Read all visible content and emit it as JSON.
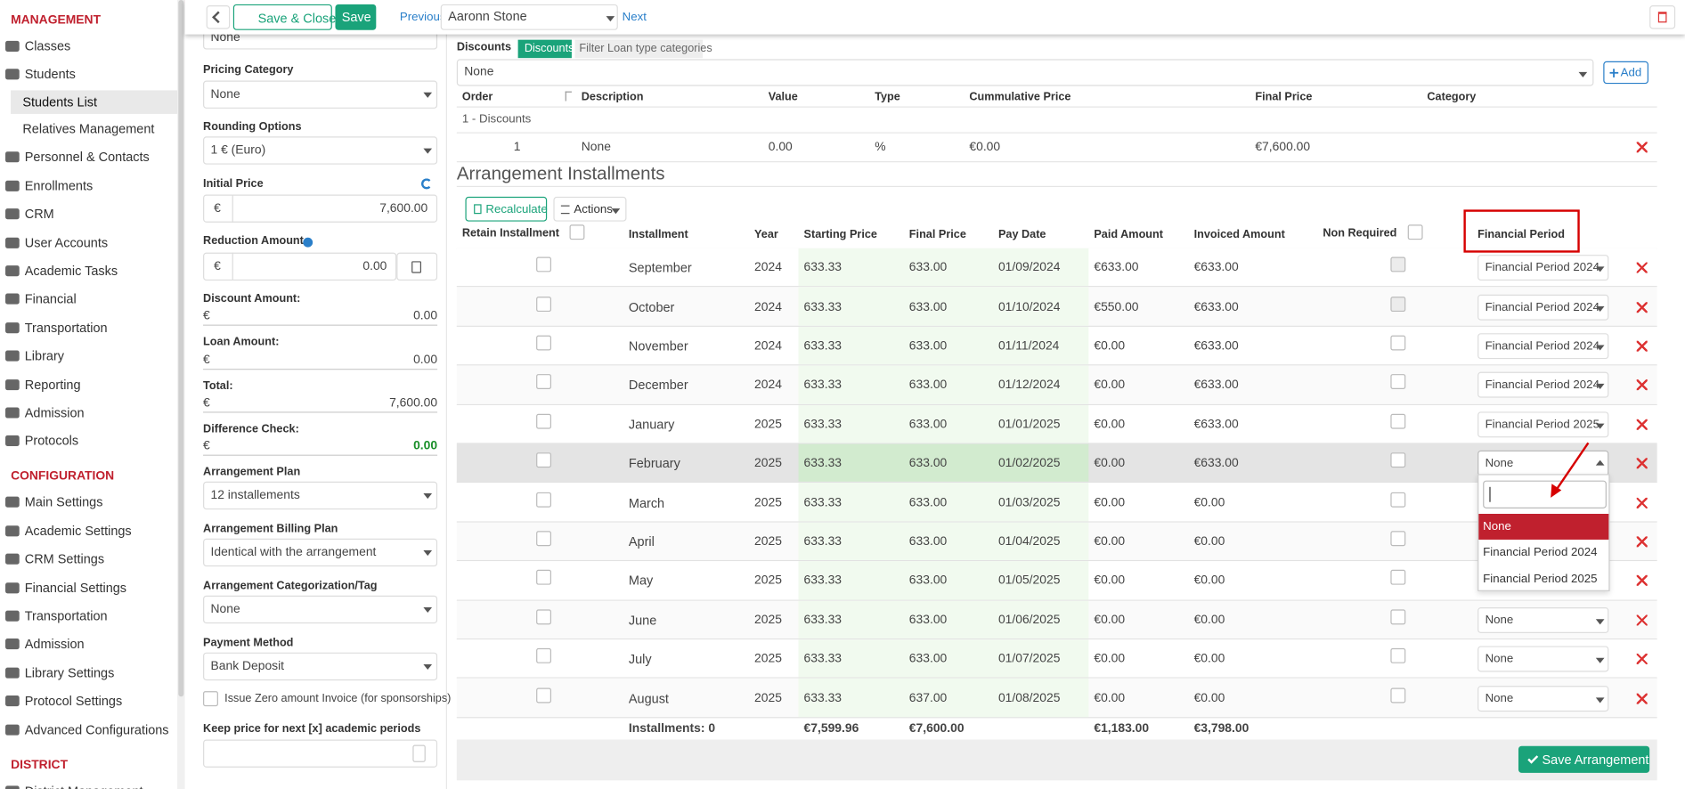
{
  "sidebar": {
    "sections": [
      {
        "title": "MANAGEMENT",
        "items": [
          {
            "label": "Classes"
          },
          {
            "label": "Students",
            "sub": [
              "Students List",
              "Relatives Management"
            ]
          },
          {
            "label": "Personnel & Contacts"
          },
          {
            "label": "Enrollments"
          },
          {
            "label": "CRM"
          },
          {
            "label": "User Accounts"
          },
          {
            "label": "Academic Tasks"
          },
          {
            "label": "Financial"
          },
          {
            "label": "Transportation"
          },
          {
            "label": "Library"
          },
          {
            "label": "Reporting"
          },
          {
            "label": "Admission"
          },
          {
            "label": "Protocols"
          }
        ]
      },
      {
        "title": "CONFIGURATION",
        "items": [
          {
            "label": "Main Settings"
          },
          {
            "label": "Academic Settings"
          },
          {
            "label": "CRM Settings"
          },
          {
            "label": "Financial Settings"
          },
          {
            "label": "Transportation"
          },
          {
            "label": "Admission"
          },
          {
            "label": "Library Settings"
          },
          {
            "label": "Protocol Settings"
          },
          {
            "label": "Advanced Configurations"
          }
        ]
      },
      {
        "title": "DISTRICT",
        "items": [
          {
            "label": "District Management"
          }
        ]
      }
    ]
  },
  "toolbar": {
    "save_close": "Save & Close",
    "save": "Save",
    "previous": "Previous",
    "student": "Aaronn Stone",
    "next": "Next"
  },
  "form": {
    "currency": "€",
    "top_select": "None",
    "fields": [
      {
        "label": "Pricing Category",
        "value": "None"
      },
      {
        "label": "Rounding Options",
        "value": "1 € (Euro)"
      },
      {
        "label": "Initial Price",
        "value": "7,600.00"
      },
      {
        "label": "Reduction Amount",
        "value": "0.00"
      },
      {
        "label": "Discount Amount:",
        "value": "0.00"
      },
      {
        "label": "Loan Amount:",
        "value": "0.00"
      },
      {
        "label": "Total:",
        "value": "7,600.00"
      },
      {
        "label": "Difference Check:",
        "value": "0.00"
      },
      {
        "label": "Arrangement Plan",
        "value": "12 installements"
      },
      {
        "label": "Arrangement Billing Plan",
        "value": "Identical with the arrangement"
      },
      {
        "label": "Arrangement Categorization/Tag",
        "value": "None"
      },
      {
        "label": "Payment Method",
        "value": "Bank Deposit"
      }
    ],
    "zero_invoice": "Issue Zero amount Invoice (for sponsorships)",
    "keep_price": "Keep price for next [x] academic periods"
  },
  "discounts": {
    "label": "Discounts",
    "tabs": [
      "Discounts",
      "Filter Loan type categories"
    ],
    "select": "None",
    "add": "Add",
    "columns": [
      "Order",
      "Description",
      "Value",
      "Type",
      "Cummulative Price",
      "Final Price",
      "Category"
    ],
    "group": "1 - Discounts",
    "rows": [
      [
        "1",
        "None",
        "0.00",
        "%",
        "€0.00",
        "€7,600.00"
      ]
    ]
  },
  "installments": {
    "title": "Arrangement Installments",
    "recalculate": "Recalculate",
    "actions": "Actions",
    "columns": [
      "Retain Installment",
      "Installment",
      "Year",
      "Starting Price",
      "Final Price",
      "Pay Date",
      "Paid Amount",
      "Invoiced Amount",
      "Non Required",
      "Financial Period"
    ],
    "rows": [
      [
        "September",
        "2024",
        "633.33",
        "633.00",
        "01/09/2024",
        "€633.00",
        "€633.00",
        "Financial Period 2024"
      ],
      [
        "October",
        "2024",
        "633.33",
        "633.00",
        "01/10/2024",
        "€550.00",
        "€633.00",
        "Financial Period 2024"
      ],
      [
        "November",
        "2024",
        "633.33",
        "633.00",
        "01/11/2024",
        "€0.00",
        "€633.00",
        "Financial Period 2024"
      ],
      [
        "December",
        "2024",
        "633.33",
        "633.00",
        "01/12/2024",
        "€0.00",
        "€633.00",
        "Financial Period 2024"
      ],
      [
        "January",
        "2025",
        "633.33",
        "633.00",
        "01/01/2025",
        "€0.00",
        "€633.00",
        "Financial Period 2025"
      ],
      [
        "February",
        "2025",
        "633.33",
        "633.00",
        "01/02/2025",
        "€0.00",
        "€633.00",
        "None"
      ],
      [
        "March",
        "2025",
        "633.33",
        "633.00",
        "01/03/2025",
        "€0.00",
        "€0.00",
        null
      ],
      [
        "April",
        "2025",
        "633.33",
        "633.00",
        "01/04/2025",
        "€0.00",
        "€0.00",
        null
      ],
      [
        "May",
        "2025",
        "633.33",
        "633.00",
        "01/05/2025",
        "€0.00",
        "€0.00",
        null
      ],
      [
        "June",
        "2025",
        "633.33",
        "633.00",
        "01/06/2025",
        "€0.00",
        "€0.00",
        "None"
      ],
      [
        "July",
        "2025",
        "633.33",
        "633.00",
        "01/07/2025",
        "€0.00",
        "€0.00",
        "None"
      ],
      [
        "August",
        "2025",
        "633.33",
        "637.00",
        "01/08/2025",
        "€0.00",
        "€0.00",
        "None"
      ]
    ],
    "totals": {
      "label": "Installments: 0",
      "starting_price": "€7,599.96",
      "final_price": "€7,600.00",
      "paid_amount": "€1,183.00",
      "invoiced_amount": "€3,798.00"
    },
    "dropdown": [
      "None",
      "Financial Period 2024",
      "Financial Period 2025"
    ],
    "save": "Save Arrangement"
  }
}
